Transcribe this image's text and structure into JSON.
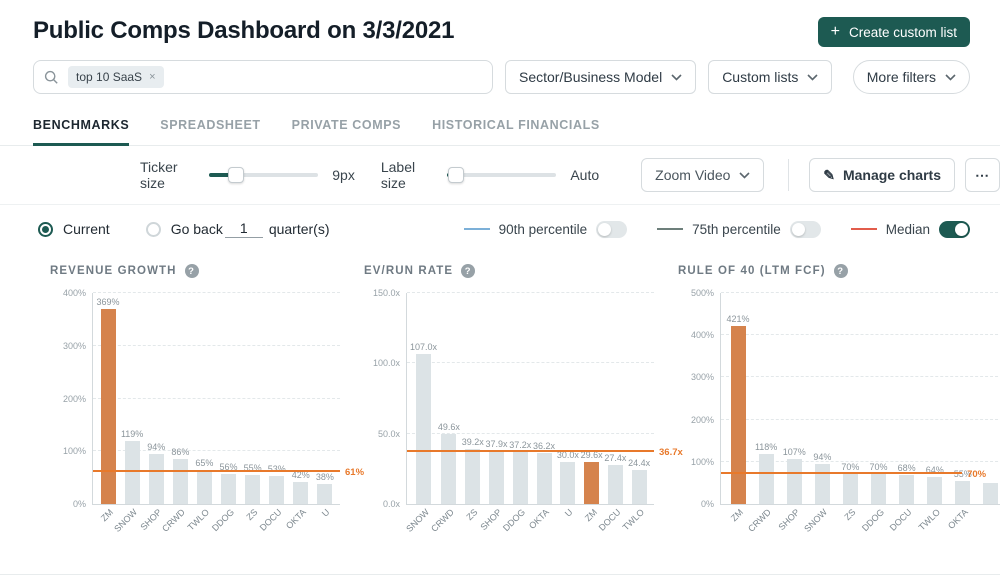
{
  "header": {
    "title": "Public Comps Dashboard on 3/3/2021",
    "create_button": "Create custom list",
    "plus": "+"
  },
  "filters": {
    "search_chip": "top 10 SaaS",
    "chip_remove": "×",
    "sector_dropdown": "Sector/Business Model",
    "custom_lists_dropdown": "Custom lists",
    "more_filters": "More filters"
  },
  "tabs": [
    {
      "label": "BENCHMARKS",
      "active": true
    },
    {
      "label": "SPREADSHEET",
      "active": false
    },
    {
      "label": "PRIVATE COMPS",
      "active": false
    },
    {
      "label": "HISTORICAL FINANCIALS",
      "active": false
    }
  ],
  "controls": {
    "ticker_size_label": "Ticker size",
    "ticker_size_value": "9px",
    "label_size_label": "Label size",
    "label_size_value": "Auto",
    "zoom_dropdown": "Zoom Video",
    "manage_charts": "Manage charts",
    "manage_icon": "✎",
    "more_button": "⋯"
  },
  "period": {
    "current_label": "Current",
    "go_back_label": "Go back",
    "quarters_value": "1",
    "quarters_suffix": "quarter(s)"
  },
  "legend": [
    {
      "label": "90th percentile",
      "color": "#7cb0d8",
      "on": false
    },
    {
      "label": "75th percentile",
      "color": "#6d7f7b",
      "on": false
    },
    {
      "label": "Median",
      "color": "#e25c4b",
      "on": true
    }
  ],
  "colors": {
    "accent_teal": "#1d5a52",
    "bar_gray": "#dce3e6",
    "bar_orange": "#d5834d",
    "median_orange": "#e8792b"
  },
  "chart_data": [
    {
      "type": "bar",
      "title": "REVENUE GROWTH",
      "categories": [
        "ZM",
        "SNOW",
        "SHOP",
        "CRWD",
        "TWLO",
        "DDOG",
        "ZS",
        "DOCU",
        "OKTA",
        "U"
      ],
      "values": [
        369,
        119,
        94,
        86,
        65,
        56,
        55,
        53,
        42,
        38
      ],
      "labels": [
        "369%",
        "119%",
        "94%",
        "86%",
        "65%",
        "56%",
        "55%",
        "53%",
        "42%",
        "38%"
      ],
      "highlight_index": 0,
      "median": 61,
      "median_label": "61%",
      "median_span": 1.0,
      "ylim": [
        0,
        400
      ],
      "yticks": [
        {
          "value": 0,
          "label": "0%"
        },
        {
          "value": 100,
          "label": "100%"
        },
        {
          "value": 200,
          "label": "200%"
        },
        {
          "value": 300,
          "label": "300%"
        },
        {
          "value": 400,
          "label": "400%"
        }
      ]
    },
    {
      "type": "bar",
      "title": "EV/RUN RATE",
      "categories": [
        "SNOW",
        "CRWD",
        "ZS",
        "SHOP",
        "DDOG",
        "OKTA",
        "U",
        "ZM",
        "DOCU",
        "TWLO"
      ],
      "values": [
        107.0,
        49.6,
        39.2,
        37.9,
        37.2,
        36.2,
        30.0,
        29.6,
        27.4,
        24.4
      ],
      "labels": [
        "107.0x",
        "49.6x",
        "39.2x",
        "37.9x",
        "37.2x",
        "36.2x",
        "30.0x",
        "29.6x",
        "27.4x",
        "24.4x"
      ],
      "highlight_index": 7,
      "median": 36.7,
      "median_label": "36.7x",
      "median_span": 1.0,
      "ylim": [
        0,
        150
      ],
      "yticks": [
        {
          "value": 0,
          "label": "0.0x"
        },
        {
          "value": 50,
          "label": "50.0x"
        },
        {
          "value": 100,
          "label": "100.0x"
        },
        {
          "value": 150,
          "label": "150.0x"
        }
      ]
    },
    {
      "type": "bar",
      "title": "RULE OF 40 (LTM FCF)",
      "categories": [
        "ZM",
        "CRWD",
        "SHOP",
        "SNOW",
        "ZS",
        "DDOG",
        "DOCU",
        "TWLO",
        "OKTA",
        ""
      ],
      "values": [
        421,
        118,
        107,
        94,
        70,
        70,
        68,
        64,
        55,
        50
      ],
      "labels": [
        "421%",
        "118%",
        "107%",
        "94%",
        "70%",
        "70%",
        "68%",
        "64%",
        "55%",
        ""
      ],
      "highlight_index": 0,
      "median": 70,
      "median_label": "70%",
      "median_span": 0.84,
      "ylim": [
        0,
        500
      ],
      "yticks": [
        {
          "value": 0,
          "label": "0%"
        },
        {
          "value": 100,
          "label": "100%"
        },
        {
          "value": 200,
          "label": "200%"
        },
        {
          "value": 300,
          "label": "300%"
        },
        {
          "value": 400,
          "label": "400%"
        },
        {
          "value": 500,
          "label": "500%"
        }
      ]
    }
  ]
}
